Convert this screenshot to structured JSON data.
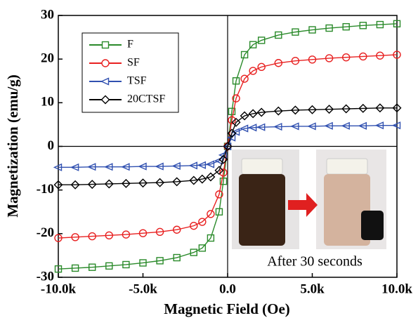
{
  "chart_data": {
    "type": "line",
    "x_label": "Magnetic Field (Oe)",
    "y_label": "Magnetization (emu/g)",
    "annotation": "After 30 seconds",
    "xlim": [
      -10000,
      10000
    ],
    "ylim": [
      -30,
      30
    ],
    "xticks": [
      {
        "value": -10000,
        "label": "-10.0k"
      },
      {
        "value": -5000,
        "label": "-5.0k"
      },
      {
        "value": 0,
        "label": "0.0"
      },
      {
        "value": 5000,
        "label": "5.0k"
      },
      {
        "value": 10000,
        "label": "10.0k"
      }
    ],
    "yticks": [
      30,
      20,
      10,
      0,
      -10,
      -20,
      -30
    ],
    "legend_position": "upper left",
    "x": [
      -10000,
      -9000,
      -8000,
      -7000,
      -6000,
      -5000,
      -4000,
      -3000,
      -2000,
      -1500,
      -1000,
      -500,
      -250,
      0,
      250,
      500,
      1000,
      1500,
      2000,
      3000,
      4000,
      5000,
      6000,
      7000,
      8000,
      9000,
      10000
    ],
    "series": [
      {
        "name": "F",
        "color": "#2a8a2a",
        "marker": "square",
        "values": [
          -28.1,
          -27.9,
          -27.7,
          -27.4,
          -27.1,
          -26.7,
          -26.2,
          -25.5,
          -24.3,
          -23.3,
          -21,
          -15,
          -8,
          0,
          8,
          15,
          21,
          23.3,
          24.3,
          25.5,
          26.2,
          26.7,
          27.1,
          27.4,
          27.7,
          27.9,
          28.1
        ]
      },
      {
        "name": "SF",
        "color": "#e82020",
        "marker": "circle",
        "values": [
          -21,
          -20.8,
          -20.6,
          -20.4,
          -20.2,
          -19.9,
          -19.6,
          -19.1,
          -18.2,
          -17.3,
          -15.5,
          -11,
          -6,
          0,
          6,
          11,
          15.5,
          17.3,
          18.2,
          19.1,
          19.6,
          19.9,
          20.2,
          20.4,
          20.6,
          20.8,
          21
        ]
      },
      {
        "name": "TSF",
        "color": "#3050b0",
        "marker": "triangle-left",
        "values": [
          -4.8,
          -4.8,
          -4.7,
          -4.7,
          -4.7,
          -4.6,
          -4.6,
          -4.5,
          -4.4,
          -4.3,
          -4.1,
          -3.3,
          -2,
          0,
          2,
          3.3,
          4.1,
          4.3,
          4.4,
          4.5,
          4.6,
          4.6,
          4.7,
          4.7,
          4.7,
          4.8,
          4.8
        ]
      },
      {
        "name": "20CTSF",
        "color": "#000000",
        "marker": "diamond",
        "values": [
          -8.8,
          -8.8,
          -8.7,
          -8.6,
          -8.5,
          -8.4,
          -8.3,
          -8.1,
          -7.8,
          -7.5,
          -7,
          -5.5,
          -3,
          0,
          3,
          5.5,
          7,
          7.5,
          7.8,
          8.1,
          8.3,
          8.4,
          8.5,
          8.6,
          8.7,
          8.8,
          8.8
        ]
      }
    ]
  }
}
